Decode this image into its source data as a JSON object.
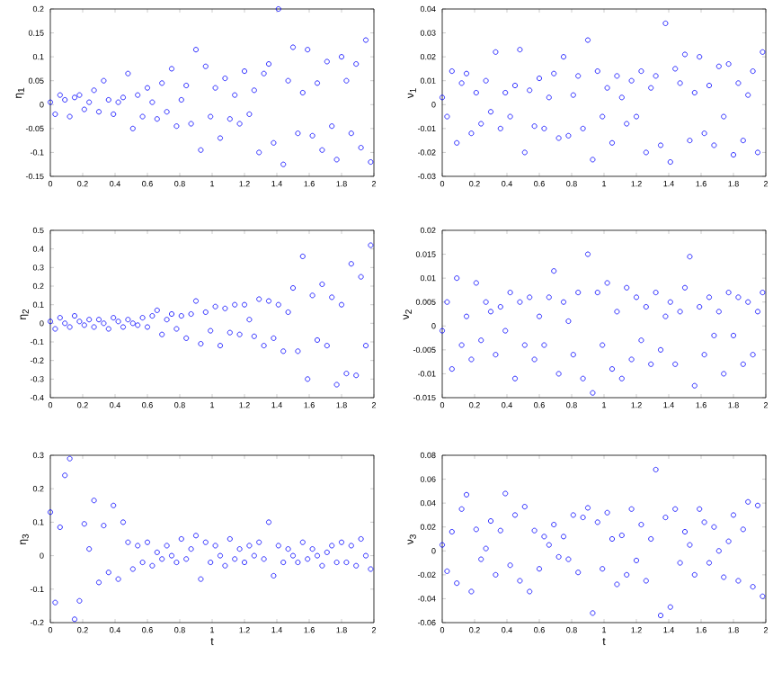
{
  "chart_data": [
    {
      "type": "scatter",
      "ylabel": "η$_{1}$",
      "color": "#0000ff",
      "marker": "circle",
      "xlim": [
        0,
        2
      ],
      "ylim": [
        -0.15,
        0.2
      ],
      "xticks": [
        0,
        0.2,
        0.4,
        0.6,
        0.8,
        1,
        1.2,
        1.4,
        1.6,
        1.8,
        2
      ],
      "yticks": [
        -0.15,
        -0.1,
        -0.05,
        0,
        0.05,
        0.1,
        0.15,
        0.2
      ],
      "x": [
        0,
        0.03,
        0.06,
        0.09,
        0.12,
        0.15,
        0.18,
        0.21,
        0.24,
        0.27,
        0.3,
        0.33,
        0.36,
        0.39,
        0.42,
        0.45,
        0.48,
        0.51,
        0.54,
        0.57,
        0.6,
        0.63,
        0.66,
        0.69,
        0.72,
        0.75,
        0.78,
        0.81,
        0.84,
        0.87,
        0.9,
        0.93,
        0.96,
        0.99,
        1.02,
        1.05,
        1.08,
        1.11,
        1.14,
        1.17,
        1.2,
        1.23,
        1.26,
        1.29,
        1.32,
        1.35,
        1.38,
        1.41,
        1.44,
        1.47,
        1.5,
        1.53,
        1.56,
        1.59,
        1.62,
        1.65,
        1.68,
        1.71,
        1.74,
        1.77,
        1.8,
        1.83,
        1.86,
        1.89,
        1.92,
        1.95,
        1.98
      ],
      "values": [
        0.005,
        -0.02,
        0.02,
        0.01,
        -0.025,
        0.015,
        0.02,
        -0.01,
        0.005,
        0.03,
        -0.015,
        0.05,
        0.01,
        -0.02,
        0.005,
        0.015,
        0.065,
        -0.05,
        0.02,
        -0.025,
        0.035,
        0.005,
        -0.03,
        0.045,
        -0.015,
        0.075,
        -0.045,
        0.01,
        0.04,
        -0.04,
        0.115,
        -0.095,
        0.08,
        -0.025,
        0.035,
        -0.07,
        0.055,
        -0.03,
        0.02,
        -0.04,
        0.07,
        -0.02,
        0.03,
        -0.1,
        0.065,
        0.085,
        -0.08,
        0.2,
        -0.125,
        0.05,
        0.12,
        -0.06,
        0.025,
        0.115,
        -0.065,
        0.045,
        -0.095,
        0.09,
        -0.045,
        -0.115,
        0.1,
        0.05,
        -0.06,
        0.085,
        -0.09,
        0.135,
        -0.12
      ]
    },
    {
      "type": "scatter",
      "ylabel": "ν$_{1}$",
      "color": "#0000ff",
      "marker": "circle",
      "xlim": [
        0,
        2
      ],
      "ylim": [
        -0.03,
        0.04
      ],
      "xticks": [
        0,
        0.2,
        0.4,
        0.6,
        0.8,
        1,
        1.2,
        1.4,
        1.6,
        1.8,
        2
      ],
      "yticks": [
        -0.03,
        -0.02,
        -0.01,
        0,
        0.01,
        0.02,
        0.03,
        0.04
      ],
      "x": [
        0,
        0.03,
        0.06,
        0.09,
        0.12,
        0.15,
        0.18,
        0.21,
        0.24,
        0.27,
        0.3,
        0.33,
        0.36,
        0.39,
        0.42,
        0.45,
        0.48,
        0.51,
        0.54,
        0.57,
        0.6,
        0.63,
        0.66,
        0.69,
        0.72,
        0.75,
        0.78,
        0.81,
        0.84,
        0.87,
        0.9,
        0.93,
        0.96,
        0.99,
        1.02,
        1.05,
        1.08,
        1.11,
        1.14,
        1.17,
        1.2,
        1.23,
        1.26,
        1.29,
        1.32,
        1.35,
        1.38,
        1.41,
        1.44,
        1.47,
        1.5,
        1.53,
        1.56,
        1.59,
        1.62,
        1.65,
        1.68,
        1.71,
        1.74,
        1.77,
        1.8,
        1.83,
        1.86,
        1.89,
        1.92,
        1.95,
        1.98
      ],
      "values": [
        0.003,
        -0.005,
        0.014,
        -0.016,
        0.009,
        0.013,
        -0.012,
        0.005,
        -0.008,
        0.01,
        -0.003,
        0.022,
        -0.01,
        0.005,
        -0.005,
        0.008,
        0.023,
        -0.02,
        0.006,
        -0.009,
        0.011,
        -0.01,
        0.003,
        0.013,
        -0.014,
        0.02,
        -0.013,
        0.004,
        0.012,
        -0.01,
        0.027,
        -0.023,
        0.014,
        -0.005,
        0.007,
        -0.016,
        0.012,
        0.003,
        -0.008,
        0.01,
        -0.005,
        0.014,
        -0.02,
        0.007,
        0.012,
        -0.017,
        0.034,
        -0.024,
        0.015,
        0.009,
        0.021,
        -0.015,
        0.005,
        0.02,
        -0.012,
        0.008,
        -0.017,
        0.016,
        -0.005,
        0.017,
        -0.021,
        0.009,
        -0.015,
        0.004,
        0.014,
        -0.02,
        0.022
      ]
    },
    {
      "type": "scatter",
      "ylabel": "η$_{2}$",
      "color": "#0000ff",
      "marker": "circle",
      "xlim": [
        0,
        2
      ],
      "ylim": [
        -0.4,
        0.5
      ],
      "xticks": [
        0,
        0.2,
        0.4,
        0.6,
        0.8,
        1,
        1.2,
        1.4,
        1.6,
        1.8,
        2
      ],
      "yticks": [
        -0.4,
        -0.3,
        -0.2,
        -0.1,
        0,
        0.1,
        0.2,
        0.3,
        0.4,
        0.5
      ],
      "x": [
        0,
        0.03,
        0.06,
        0.09,
        0.12,
        0.15,
        0.18,
        0.21,
        0.24,
        0.27,
        0.3,
        0.33,
        0.36,
        0.39,
        0.42,
        0.45,
        0.48,
        0.51,
        0.54,
        0.57,
        0.6,
        0.63,
        0.66,
        0.69,
        0.72,
        0.75,
        0.78,
        0.81,
        0.84,
        0.87,
        0.9,
        0.93,
        0.96,
        0.99,
        1.02,
        1.05,
        1.08,
        1.11,
        1.14,
        1.17,
        1.2,
        1.23,
        1.26,
        1.29,
        1.32,
        1.35,
        1.38,
        1.41,
        1.44,
        1.47,
        1.5,
        1.53,
        1.56,
        1.59,
        1.62,
        1.65,
        1.68,
        1.71,
        1.74,
        1.77,
        1.8,
        1.83,
        1.86,
        1.89,
        1.92,
        1.95,
        1.98
      ],
      "values": [
        0.01,
        -0.03,
        0.03,
        0.0,
        -0.02,
        0.04,
        0.01,
        -0.01,
        0.02,
        -0.02,
        0.02,
        0.0,
        -0.03,
        0.03,
        0.01,
        -0.02,
        0.02,
        0.0,
        -0.01,
        0.03,
        -0.02,
        0.04,
        0.07,
        -0.06,
        0.02,
        0.05,
        -0.03,
        0.04,
        -0.08,
        0.05,
        0.12,
        -0.11,
        0.06,
        -0.04,
        0.09,
        -0.12,
        0.08,
        -0.05,
        0.1,
        -0.06,
        0.1,
        0.02,
        -0.07,
        0.13,
        -0.12,
        0.12,
        -0.08,
        0.1,
        -0.15,
        0.06,
        0.19,
        -0.15,
        0.36,
        -0.3,
        0.15,
        -0.09,
        0.21,
        -0.12,
        0.14,
        -0.33,
        0.1,
        -0.27,
        0.32,
        -0.28,
        0.25,
        -0.12,
        0.42
      ]
    },
    {
      "type": "scatter",
      "ylabel": "ν$_{2}$",
      "color": "#0000ff",
      "marker": "circle",
      "xlim": [
        0,
        2
      ],
      "ylim": [
        -0.015,
        0.02
      ],
      "xticks": [
        0,
        0.2,
        0.4,
        0.6,
        0.8,
        1,
        1.2,
        1.4,
        1.6,
        1.8,
        2
      ],
      "yticks": [
        -0.015,
        -0.01,
        -0.005,
        0,
        0.005,
        0.01,
        0.015,
        0.02
      ],
      "x": [
        0,
        0.03,
        0.06,
        0.09,
        0.12,
        0.15,
        0.18,
        0.21,
        0.24,
        0.27,
        0.3,
        0.33,
        0.36,
        0.39,
        0.42,
        0.45,
        0.48,
        0.51,
        0.54,
        0.57,
        0.6,
        0.63,
        0.66,
        0.69,
        0.72,
        0.75,
        0.78,
        0.81,
        0.84,
        0.87,
        0.9,
        0.93,
        0.96,
        0.99,
        1.02,
        1.05,
        1.08,
        1.11,
        1.14,
        1.17,
        1.2,
        1.23,
        1.26,
        1.29,
        1.32,
        1.35,
        1.38,
        1.41,
        1.44,
        1.47,
        1.5,
        1.53,
        1.56,
        1.59,
        1.62,
        1.65,
        1.68,
        1.71,
        1.74,
        1.77,
        1.8,
        1.83,
        1.86,
        1.89,
        1.92,
        1.95,
        1.98
      ],
      "values": [
        -0.001,
        0.005,
        -0.009,
        0.01,
        -0.004,
        0.002,
        -0.007,
        0.009,
        -0.003,
        0.005,
        0.003,
        -0.006,
        0.004,
        -0.001,
        0.007,
        -0.011,
        0.005,
        -0.004,
        0.006,
        -0.007,
        0.002,
        -0.004,
        0.006,
        0.0115,
        -0.01,
        0.005,
        0.001,
        -0.006,
        0.007,
        -0.011,
        0.015,
        -0.014,
        0.007,
        -0.004,
        0.009,
        -0.009,
        0.003,
        -0.011,
        0.008,
        -0.007,
        0.006,
        -0.003,
        0.004,
        -0.008,
        0.007,
        -0.005,
        0.002,
        0.005,
        -0.008,
        0.003,
        0.008,
        0.0145,
        -0.0125,
        0.004,
        -0.006,
        0.006,
        -0.002,
        0.003,
        -0.01,
        0.007,
        -0.002,
        0.006,
        -0.008,
        0.005,
        -0.006,
        0.003,
        0.007
      ]
    },
    {
      "type": "scatter",
      "ylabel": "η$_{3}$",
      "xlabel": "t",
      "color": "#0000ff",
      "marker": "circle",
      "xlim": [
        0,
        2
      ],
      "ylim": [
        -0.2,
        0.3
      ],
      "xticks": [
        0,
        0.2,
        0.4,
        0.6,
        0.8,
        1,
        1.2,
        1.4,
        1.6,
        1.8,
        2
      ],
      "yticks": [
        -0.2,
        -0.1,
        0,
        0.1,
        0.2,
        0.3
      ],
      "x": [
        0,
        0.03,
        0.06,
        0.09,
        0.12,
        0.15,
        0.18,
        0.21,
        0.24,
        0.27,
        0.3,
        0.33,
        0.36,
        0.39,
        0.42,
        0.45,
        0.48,
        0.51,
        0.54,
        0.57,
        0.6,
        0.63,
        0.66,
        0.69,
        0.72,
        0.75,
        0.78,
        0.81,
        0.84,
        0.87,
        0.9,
        0.93,
        0.96,
        0.99,
        1.02,
        1.05,
        1.08,
        1.11,
        1.14,
        1.17,
        1.2,
        1.23,
        1.26,
        1.29,
        1.32,
        1.35,
        1.38,
        1.41,
        1.44,
        1.47,
        1.5,
        1.53,
        1.56,
        1.59,
        1.62,
        1.65,
        1.68,
        1.71,
        1.74,
        1.77,
        1.8,
        1.83,
        1.86,
        1.89,
        1.92,
        1.95,
        1.98
      ],
      "values": [
        0.13,
        -0.14,
        0.085,
        0.24,
        0.29,
        -0.19,
        -0.135,
        0.095,
        0.02,
        0.165,
        -0.08,
        0.09,
        -0.05,
        0.15,
        -0.07,
        0.1,
        0.04,
        -0.04,
        0.03,
        -0.02,
        0.04,
        -0.03,
        0.01,
        -0.01,
        0.03,
        0.0,
        -0.02,
        0.05,
        -0.01,
        0.02,
        0.06,
        -0.07,
        0.04,
        -0.02,
        0.03,
        0.0,
        -0.03,
        0.05,
        -0.01,
        0.02,
        -0.02,
        0.03,
        0.0,
        0.04,
        -0.01,
        0.1,
        -0.06,
        0.03,
        -0.02,
        0.02,
        0.0,
        -0.02,
        0.04,
        -0.01,
        0.02,
        0.0,
        -0.03,
        0.01,
        0.03,
        -0.02,
        0.04,
        -0.02,
        0.03,
        -0.03,
        0.05,
        0.0,
        -0.04
      ]
    },
    {
      "type": "scatter",
      "ylabel": "ν$_{3}$",
      "xlabel": "t",
      "color": "#0000ff",
      "marker": "circle",
      "xlim": [
        0,
        2
      ],
      "ylim": [
        -0.06,
        0.08
      ],
      "xticks": [
        0,
        0.2,
        0.4,
        0.6,
        0.8,
        1,
        1.2,
        1.4,
        1.6,
        1.8,
        2
      ],
      "yticks": [
        -0.06,
        -0.04,
        -0.02,
        0,
        0.02,
        0.04,
        0.06,
        0.08
      ],
      "x": [
        0,
        0.03,
        0.06,
        0.09,
        0.12,
        0.15,
        0.18,
        0.21,
        0.24,
        0.27,
        0.3,
        0.33,
        0.36,
        0.39,
        0.42,
        0.45,
        0.48,
        0.51,
        0.54,
        0.57,
        0.6,
        0.63,
        0.66,
        0.69,
        0.72,
        0.75,
        0.78,
        0.81,
        0.84,
        0.87,
        0.9,
        0.93,
        0.96,
        0.99,
        1.02,
        1.05,
        1.08,
        1.11,
        1.14,
        1.17,
        1.2,
        1.23,
        1.26,
        1.29,
        1.32,
        1.35,
        1.38,
        1.41,
        1.44,
        1.47,
        1.5,
        1.53,
        1.56,
        1.59,
        1.62,
        1.65,
        1.68,
        1.71,
        1.74,
        1.77,
        1.8,
        1.83,
        1.86,
        1.89,
        1.92,
        1.95,
        1.98
      ],
      "values": [
        0.005,
        -0.017,
        0.016,
        -0.027,
        0.035,
        0.047,
        -0.034,
        0.018,
        -0.007,
        0.002,
        0.025,
        -0.02,
        0.017,
        0.048,
        -0.012,
        0.03,
        -0.025,
        0.037,
        -0.034,
        0.017,
        -0.015,
        0.012,
        0.005,
        0.022,
        -0.005,
        0.012,
        -0.007,
        0.03,
        -0.018,
        0.028,
        0.036,
        -0.052,
        0.024,
        -0.015,
        0.032,
        0.01,
        -0.028,
        0.013,
        -0.02,
        0.035,
        -0.008,
        0.022,
        -0.025,
        0.01,
        0.068,
        -0.054,
        0.028,
        -0.047,
        0.035,
        -0.01,
        0.016,
        0.005,
        -0.02,
        0.035,
        0.024,
        -0.01,
        0.02,
        0.0,
        -0.022,
        0.008,
        0.03,
        -0.025,
        0.018,
        0.041,
        -0.03,
        0.038,
        -0.038
      ]
    }
  ]
}
